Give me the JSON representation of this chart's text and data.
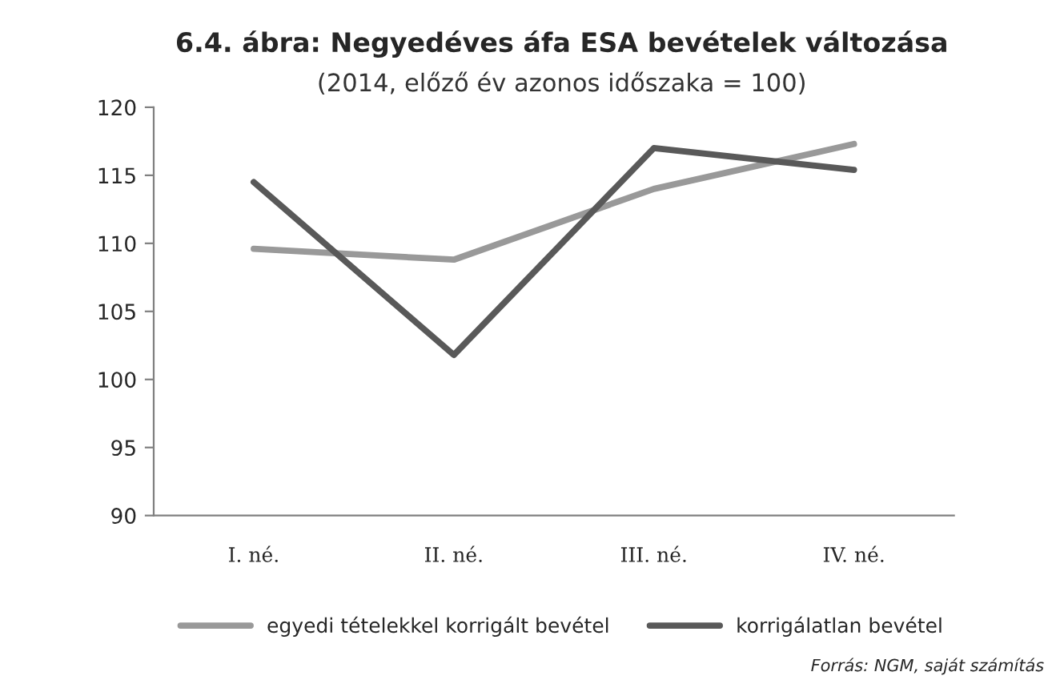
{
  "chart_data": {
    "type": "line",
    "title": "6.4. ábra: Negyedéves áfa ESA bevételek változása",
    "subtitle": "(2014, előző év azonos időszaka = 100)",
    "categories": [
      "I. né.",
      "II. né.",
      "III. né.",
      "IV. né."
    ],
    "series": [
      {
        "name": "egyedi tételekkel korrigált bevétel",
        "color": "#999999",
        "values": [
          109.6,
          108.8,
          114.0,
          117.3
        ]
      },
      {
        "name": "korrigálatlan bevétel",
        "color": "#595959",
        "values": [
          114.5,
          101.8,
          117.0,
          115.4
        ]
      }
    ],
    "ylim": [
      90,
      120
    ],
    "yticks": [
      90,
      95,
      100,
      105,
      110,
      115,
      120
    ],
    "grid": false,
    "legend": "bottom",
    "marker": "none",
    "line_style": "solid",
    "annotations": [
      "Forrás: NGM, saját számítás"
    ]
  }
}
